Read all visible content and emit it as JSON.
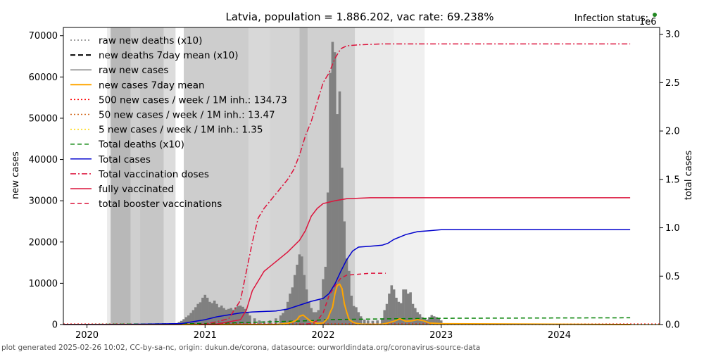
{
  "chart_data": {
    "type": "line",
    "title": "Latvia, population = 1.886.202, vac rate: 69.238%",
    "status_label": "Infection status:",
    "status_color": "#228822",
    "right_offset_label": "1e6",
    "ylabel_left": "new cases",
    "ylabel_right": "total cases",
    "footer": "plot generated 2025-02-26 10:02, CC-by-sa-nc, origin: dukun.de/corona, datasource: ourworldindata.org/coronavirus-source-data",
    "xlim": [
      2019.8,
      2024.85
    ],
    "ylim_left": [
      0,
      72000
    ],
    "ylim_right": [
      0,
      3.07
    ],
    "x_ticks": [
      2020,
      2021,
      2022,
      2023,
      2024
    ],
    "x_tick_labels": [
      "2020",
      "2021",
      "2022",
      "2023",
      "2024"
    ],
    "y_left_ticks": [
      0,
      10000,
      20000,
      30000,
      40000,
      50000,
      60000,
      70000
    ],
    "y_left_tick_labels": [
      "0",
      "10000",
      "20000",
      "30000",
      "40000",
      "50000",
      "60000",
      "70000"
    ],
    "y_right_ticks": [
      0,
      0.5,
      1.0,
      1.5,
      2.0,
      2.5,
      3.0
    ],
    "y_right_tick_labels": [
      "0.0",
      "0.5",
      "1.0",
      "1.5",
      "2.0",
      "2.5",
      "3.0"
    ],
    "legend": [
      {
        "label": "raw new deaths (x10)",
        "color": "#808080",
        "dash": "2,3",
        "width": 1.5
      },
      {
        "label": "new deaths 7day mean (x10)",
        "color": "#000000",
        "dash": "7,4",
        "width": 2
      },
      {
        "label": "raw new cases",
        "color": "#808080",
        "dash": "",
        "width": 1.5
      },
      {
        "label": "new cases 7day mean",
        "color": "#ffa500",
        "dash": "",
        "width": 2
      },
      {
        "label": "500 new cases / week / 1M inh.: 134.73",
        "color": "#ff0000",
        "dash": "2,3",
        "width": 1.5
      },
      {
        "label": "50 new cases / week / 1M inh.: 13.47",
        "color": "#d2691e",
        "dash": "2,3",
        "width": 1.5
      },
      {
        "label": "5 new cases / week / 1M inh.: 1.35",
        "color": "#ffd700",
        "dash": "2,3",
        "width": 1.5
      },
      {
        "label": "Total deaths (x10)",
        "color": "#008000",
        "dash": "6,4",
        "width": 1.5
      },
      {
        "label": "Total cases",
        "color": "#0000cd",
        "dash": "",
        "width": 1.5
      },
      {
        "label": "Total vaccination doses",
        "color": "#dc143c",
        "dash": "8,3,2,3",
        "width": 1.5
      },
      {
        "label": "fully vaccinated",
        "color": "#dc143c",
        "dash": "",
        "width": 1.5
      },
      {
        "label": "total booster vaccinations",
        "color": "#dc143c",
        "dash": "6,4",
        "width": 1.5
      }
    ],
    "background_bands": [
      {
        "x0": 2020.17,
        "x1": 2020.2,
        "shade": "#ebebeb"
      },
      {
        "x0": 2020.2,
        "x1": 2020.37,
        "shade": "#b8b8b8"
      },
      {
        "x0": 2020.37,
        "x1": 2020.45,
        "shade": "#cfcfcf"
      },
      {
        "x0": 2020.45,
        "x1": 2020.65,
        "shade": "#c6c6c6"
      },
      {
        "x0": 2020.65,
        "x1": 2020.75,
        "shade": "#dcdcdc"
      },
      {
        "x0": 2020.82,
        "x1": 2021.37,
        "shade": "#cdcdcd"
      },
      {
        "x0": 2021.37,
        "x1": 2021.55,
        "shade": "#d8d8d8"
      },
      {
        "x0": 2021.55,
        "x1": 2021.8,
        "shade": "#d4d4d4"
      },
      {
        "x0": 2021.8,
        "x1": 2021.87,
        "shade": "#bdbdbd"
      },
      {
        "x0": 2021.87,
        "x1": 2022.27,
        "shade": "#d0d0d0"
      },
      {
        "x0": 2022.27,
        "x1": 2022.6,
        "shade": "#eaeaea"
      },
      {
        "x0": 2022.6,
        "x1": 2022.86,
        "shade": "#f0f0f0"
      }
    ],
    "raw_new_cases_weekly": {
      "x": [
        2020.25,
        2020.3,
        2020.35,
        2020.4,
        2020.45,
        2020.5,
        2020.55,
        2020.6,
        2020.65,
        2020.7,
        2020.75,
        2020.78,
        2020.8,
        2020.82,
        2020.84,
        2020.86,
        2020.88,
        2020.9,
        2020.92,
        2020.94,
        2020.96,
        2020.98,
        2021.0,
        2021.02,
        2021.04,
        2021.06,
        2021.08,
        2021.1,
        2021.12,
        2021.14,
        2021.16,
        2021.18,
        2021.2,
        2021.22,
        2021.24,
        2021.26,
        2021.28,
        2021.3,
        2021.32,
        2021.34,
        2021.36,
        2021.38,
        2021.42,
        2021.46,
        2021.5,
        2021.55,
        2021.6,
        2021.64,
        2021.66,
        2021.68,
        2021.7,
        2021.72,
        2021.74,
        2021.76,
        2021.78,
        2021.8,
        2021.82,
        2021.84,
        2021.86,
        2021.88,
        2021.9,
        2021.92,
        2021.94,
        2021.96,
        2021.98,
        2022.0,
        2022.02,
        2022.04,
        2022.06,
        2022.08,
        2022.1,
        2022.12,
        2022.14,
        2022.16,
        2022.18,
        2022.2,
        2022.22,
        2022.24,
        2022.26,
        2022.28,
        2022.3,
        2022.32,
        2022.35,
        2022.38,
        2022.42,
        2022.46,
        2022.5,
        2022.52,
        2022.54,
        2022.56,
        2022.58,
        2022.6,
        2022.62,
        2022.64,
        2022.66,
        2022.68,
        2022.7,
        2022.72,
        2022.74,
        2022.76,
        2022.78,
        2022.8,
        2022.82,
        2022.84,
        2022.86,
        2022.88,
        2022.9,
        2022.92,
        2022.94,
        2022.96,
        2022.98,
        2023.0
      ],
      "values": [
        200,
        150,
        100,
        50,
        30,
        30,
        50,
        80,
        100,
        150,
        300,
        600,
        900,
        1300,
        1800,
        2200,
        2800,
        3500,
        4200,
        5000,
        5400,
        6500,
        7200,
        6500,
        5500,
        5200,
        5800,
        5000,
        4200,
        4600,
        4000,
        3600,
        3800,
        4000,
        3600,
        4200,
        4500,
        4600,
        4300,
        3800,
        3000,
        2200,
        1500,
        1000,
        800,
        1000,
        1500,
        2200,
        2800,
        3800,
        5500,
        7500,
        9000,
        12000,
        14500,
        17000,
        16500,
        12000,
        8500,
        5500,
        4000,
        3000,
        3000,
        3500,
        6000,
        11000,
        14000,
        32000,
        61000,
        68500,
        66000,
        51000,
        56500,
        38000,
        25000,
        16000,
        13000,
        7000,
        4500,
        4200,
        3000,
        2000,
        1200,
        1000,
        900,
        1000,
        1500,
        3500,
        5000,
        7500,
        9500,
        8500,
        6500,
        5500,
        5200,
        8500,
        8500,
        7500,
        7800,
        5000,
        4000,
        3000,
        2500,
        1800,
        1500,
        1200,
        1800,
        2300,
        2000,
        1800,
        1500,
        1000
      ]
    },
    "new_cases_7day_mean": {
      "x": [
        2019.8,
        2021.6,
        2021.7,
        2021.75,
        2021.78,
        2021.8,
        2021.83,
        2021.86,
        2021.9,
        2021.95,
        2022.0,
        2022.04,
        2022.06,
        2022.08,
        2022.1,
        2022.12,
        2022.14,
        2022.16,
        2022.18,
        2022.2,
        2022.22,
        2022.25,
        2022.28,
        2022.32,
        2022.4,
        2022.5,
        2022.55,
        2022.6,
        2022.65,
        2022.7,
        2022.75,
        2022.8,
        2022.85,
        2022.9,
        2023.0,
        2024.6
      ],
      "values": [
        0,
        0,
        300,
        700,
        1200,
        2000,
        2300,
        1600,
        700,
        300,
        400,
        1500,
        3000,
        4200,
        7500,
        9500,
        9800,
        8700,
        5000,
        3000,
        1200,
        600,
        300,
        100,
        50,
        80,
        400,
        800,
        1400,
        800,
        900,
        1200,
        900,
        400,
        200,
        0
      ]
    },
    "total_cases": {
      "x": [
        2019.8,
        2020.3,
        2020.8,
        2021.0,
        2021.1,
        2021.2,
        2021.3,
        2021.4,
        2021.6,
        2021.7,
        2021.8,
        2021.9,
        2022.0,
        2022.05,
        2022.1,
        2022.15,
        2022.2,
        2022.25,
        2022.3,
        2022.4,
        2022.5,
        2022.55,
        2022.6,
        2022.7,
        2022.8,
        2022.9,
        2023.0,
        2024.6
      ],
      "values": [
        0,
        0.001,
        0.01,
        0.05,
        0.08,
        0.1,
        0.12,
        0.13,
        0.14,
        0.16,
        0.2,
        0.24,
        0.27,
        0.32,
        0.42,
        0.55,
        0.67,
        0.76,
        0.8,
        0.81,
        0.82,
        0.84,
        0.88,
        0.93,
        0.96,
        0.97,
        0.98,
        0.98
      ]
    },
    "total_vaccination_doses": {
      "x": [
        2020.95,
        2021.0,
        2021.1,
        2021.2,
        2021.3,
        2021.35,
        2021.4,
        2021.45,
        2021.5,
        2021.6,
        2021.7,
        2021.75,
        2021.8,
        2021.85,
        2021.9,
        2021.95,
        2022.0,
        2022.05,
        2022.1,
        2022.15,
        2022.2,
        2022.3,
        2022.5,
        2022.8,
        2023.0,
        2024.6
      ],
      "values": [
        0,
        0.005,
        0.03,
        0.06,
        0.25,
        0.55,
        0.85,
        1.1,
        1.2,
        1.35,
        1.5,
        1.6,
        1.75,
        1.95,
        2.1,
        2.3,
        2.5,
        2.6,
        2.75,
        2.85,
        2.88,
        2.89,
        2.9,
        2.9,
        2.9,
        2.9
      ]
    },
    "fully_vaccinated": {
      "x": [
        2020.95,
        2021.1,
        2021.3,
        2021.35,
        2021.4,
        2021.5,
        2021.6,
        2021.7,
        2021.8,
        2021.85,
        2021.9,
        2021.95,
        2022.0,
        2022.1,
        2022.2,
        2022.4,
        2023.0,
        2024.6
      ],
      "values": [
        0,
        0.005,
        0.05,
        0.15,
        0.35,
        0.55,
        0.65,
        0.75,
        0.87,
        0.97,
        1.12,
        1.2,
        1.25,
        1.28,
        1.3,
        1.31,
        1.31,
        1.31
      ]
    },
    "total_booster_vaccinations": {
      "x": [
        2021.8,
        2021.9,
        2021.95,
        2022.0,
        2022.05,
        2022.1,
        2022.15,
        2022.2,
        2022.3,
        2022.4,
        2022.53
      ],
      "values": [
        0.003,
        0.01,
        0.04,
        0.12,
        0.3,
        0.4,
        0.48,
        0.51,
        0.52,
        0.53,
        0.53
      ]
    },
    "total_deaths_x10": {
      "x": [
        2019.8,
        2021.0,
        2021.3,
        2021.6,
        2021.9,
        2022.0,
        2022.3,
        2022.6,
        2023.0,
        2024.6
      ],
      "values": [
        0,
        0.01,
        0.02,
        0.03,
        0.04,
        0.05,
        0.055,
        0.06,
        0.065,
        0.07
      ]
    },
    "threshold_500_per_week_per_1M": 134.73,
    "threshold_50_per_week_per_1M": 13.47,
    "threshold_5_per_week_per_1M": 1.35
  }
}
